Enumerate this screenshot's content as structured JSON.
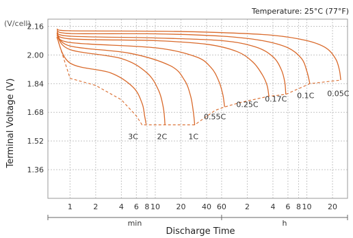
{
  "chart_data": {
    "type": "line",
    "title": "",
    "unit_label": "(V/cell)",
    "temperature_note": "Temperature: 25°C (77°F)",
    "xlabel": "Discharge Time",
    "ylabel": "Terminal Voltage (V)",
    "x_scale": "log",
    "x_unit_segments": [
      {
        "label": "min",
        "from_min": 0.55,
        "to_min": 60
      },
      {
        "label": "h",
        "from_min": 60,
        "to_min": 1800
      }
    ],
    "x_tick_labels": [
      {
        "label": "1",
        "minutes": 1
      },
      {
        "label": "2",
        "minutes": 2
      },
      {
        "label": "4",
        "minutes": 4
      },
      {
        "label": "6",
        "minutes": 6
      },
      {
        "label": "8",
        "minutes": 8
      },
      {
        "label": "10",
        "minutes": 10
      },
      {
        "label": "20",
        "minutes": 20
      },
      {
        "label": "40",
        "minutes": 40
      },
      {
        "label": "60",
        "minutes": 60
      },
      {
        "label": "2",
        "minutes": 120
      },
      {
        "label": "4",
        "minutes": 240
      },
      {
        "label": "6",
        "minutes": 360
      },
      {
        "label": "8",
        "minutes": 480
      },
      {
        "label": "10",
        "minutes": 600
      },
      {
        "label": "20",
        "minutes": 1200
      }
    ],
    "y_ticks": [
      "2.16",
      "2.00",
      "1.84",
      "1.68",
      "1.52",
      "1.36"
    ],
    "ylim": [
      1.2,
      2.2
    ],
    "grid": true,
    "line_color": "#D9692A",
    "series": [
      {
        "name": "0.05C",
        "label_at_minutes": 1400,
        "label_voltage": 1.77,
        "points": [
          [
            0.7,
            2.145
          ],
          [
            1,
            2.135
          ],
          [
            10,
            2.133
          ],
          [
            60,
            2.125
          ],
          [
            240,
            2.11
          ],
          [
            600,
            2.08
          ],
          [
            1000,
            2.04
          ],
          [
            1300,
            1.98
          ],
          [
            1440,
            1.92
          ],
          [
            1500,
            1.86
          ]
        ]
      },
      {
        "name": "0.1C",
        "label_at_minutes": 580,
        "label_voltage": 1.76,
        "points": [
          [
            0.7,
            2.14
          ],
          [
            1,
            2.12
          ],
          [
            10,
            2.118
          ],
          [
            60,
            2.105
          ],
          [
            180,
            2.08
          ],
          [
            360,
            2.04
          ],
          [
            520,
            1.98
          ],
          [
            600,
            1.91
          ],
          [
            650,
            1.84
          ]
        ]
      },
      {
        "name": "0.17C",
        "label_at_minutes": 260,
        "label_voltage": 1.74,
        "points": [
          [
            0.7,
            2.13
          ],
          [
            1,
            2.105
          ],
          [
            10,
            2.095
          ],
          [
            60,
            2.08
          ],
          [
            150,
            2.045
          ],
          [
            240,
            1.99
          ],
          [
            300,
            1.92
          ],
          [
            330,
            1.85
          ],
          [
            340,
            1.78
          ]
        ]
      },
      {
        "name": "0.25C",
        "label_at_minutes": 120,
        "label_voltage": 1.71,
        "points": [
          [
            0.7,
            2.125
          ],
          [
            1,
            2.09
          ],
          [
            10,
            2.08
          ],
          [
            40,
            2.06
          ],
          [
            90,
            2.02
          ],
          [
            140,
            1.96
          ],
          [
            180,
            1.89
          ],
          [
            205,
            1.83
          ],
          [
            215,
            1.77
          ]
        ]
      },
      {
        "name": "0.55C",
        "label_at_minutes": 50,
        "label_voltage": 1.64,
        "points": [
          [
            0.7,
            2.12
          ],
          [
            1,
            2.07
          ],
          [
            10,
            2.04
          ],
          [
            30,
            1.99
          ],
          [
            45,
            1.93
          ],
          [
            55,
            1.86
          ],
          [
            62,
            1.78
          ],
          [
            65,
            1.71
          ]
        ]
      },
      {
        "name": "1C",
        "label_at_minutes": 28,
        "label_voltage": 1.53,
        "points": [
          [
            0.7,
            2.12
          ],
          [
            1,
            2.05
          ],
          [
            5,
            2.01
          ],
          [
            15,
            1.94
          ],
          [
            22,
            1.86
          ],
          [
            26,
            1.77
          ],
          [
            28,
            1.68
          ],
          [
            29,
            1.61
          ]
        ]
      },
      {
        "name": "2C",
        "label_at_minutes": 12,
        "label_voltage": 1.53,
        "points": [
          [
            0.7,
            2.11
          ],
          [
            1,
            2.03
          ],
          [
            4,
            1.98
          ],
          [
            8,
            1.9
          ],
          [
            11,
            1.8
          ],
          [
            12.5,
            1.7
          ],
          [
            13,
            1.61
          ]
        ]
      },
      {
        "name": "3C",
        "label_at_minutes": 5.5,
        "label_voltage": 1.53,
        "points": [
          [
            0.7,
            2.1
          ],
          [
            1,
            1.955
          ],
          [
            3,
            1.9
          ],
          [
            5.5,
            1.82
          ],
          [
            7,
            1.73
          ],
          [
            7.5,
            1.66
          ],
          [
            7.8,
            1.615
          ]
        ]
      }
    ],
    "final_voltage_line": {
      "style": "dashed",
      "points": [
        [
          0.7,
          2.1
        ],
        [
          1,
          1.87
        ],
        [
          2,
          1.83
        ],
        [
          4,
          1.75
        ],
        [
          6,
          1.66
        ],
        [
          7,
          1.61
        ],
        [
          13,
          1.61
        ],
        [
          29,
          1.61
        ],
        [
          50,
          1.69
        ],
        [
          65,
          1.71
        ],
        [
          100,
          1.735
        ],
        [
          215,
          1.77
        ],
        [
          340,
          1.78
        ],
        [
          650,
          1.84
        ],
        [
          1500,
          1.86
        ]
      ]
    }
  }
}
